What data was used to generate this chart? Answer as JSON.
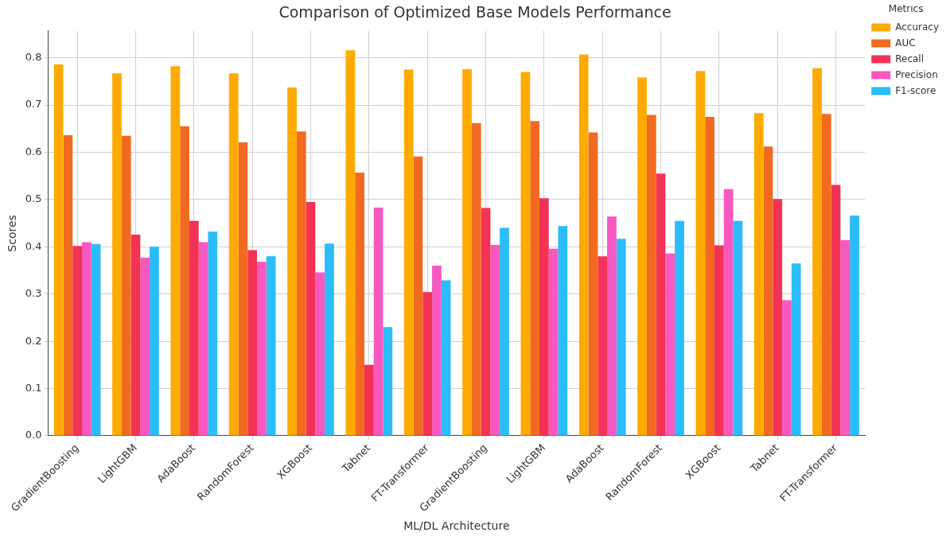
{
  "chart_data": {
    "type": "bar",
    "title": "Comparison of Optimized Base Models Performance",
    "xlabel": "ML/DL Architecture",
    "ylabel": "Scores",
    "legend_title": "Metrics",
    "legend": "top right",
    "grid": true,
    "categories": [
      "GradientBoosting",
      "LightGBM",
      "AdaBoost",
      "RandomForest",
      "XGBoost",
      "Tabnet",
      "FT-Transformer",
      "GradientBoosting",
      "LightGBM",
      "AdaBoost",
      "RandomForest",
      "XGBoost",
      "Tabnet",
      "FT-Transformer"
    ],
    "ylim": [
      0,
      0.857
    ],
    "yticks": [
      {
        "value": 0,
        "label": "0.0"
      },
      {
        "value": 0.1,
        "label": "0.1"
      },
      {
        "value": 0.2,
        "label": "0.2"
      },
      {
        "value": 0.3,
        "label": "0.3"
      },
      {
        "value": 0.4,
        "label": "0.4"
      },
      {
        "value": 0.5,
        "label": "0.5"
      },
      {
        "value": 0.6,
        "label": "0.6"
      },
      {
        "value": 0.7,
        "label": "0.7"
      },
      {
        "value": 0.8,
        "label": "0.8"
      }
    ],
    "series": [
      {
        "name": "Accuracy",
        "color": "#ffaa00",
        "values": [
          0.786,
          0.767,
          0.782,
          0.767,
          0.737,
          0.816,
          0.775,
          0.776,
          0.77,
          0.807,
          0.758,
          0.772,
          0.683,
          0.778
        ]
      },
      {
        "name": "AUC",
        "color": "#f26a21",
        "values": [
          0.636,
          0.635,
          0.655,
          0.621,
          0.644,
          0.557,
          0.591,
          0.662,
          0.666,
          0.642,
          0.679,
          0.675,
          0.612,
          0.681
        ]
      },
      {
        "name": "Recall",
        "color": "#f23355",
        "values": [
          0.402,
          0.426,
          0.455,
          0.393,
          0.495,
          0.15,
          0.304,
          0.482,
          0.503,
          0.38,
          0.555,
          0.403,
          0.501,
          0.531
        ]
      },
      {
        "name": "Precision",
        "color": "#f859c0",
        "values": [
          0.41,
          0.377,
          0.41,
          0.368,
          0.346,
          0.483,
          0.36,
          0.404,
          0.396,
          0.464,
          0.386,
          0.522,
          0.287,
          0.414
        ]
      },
      {
        "name": "F1-score",
        "color": "#2bbcfa",
        "values": [
          0.406,
          0.4,
          0.432,
          0.38,
          0.407,
          0.23,
          0.329,
          0.44,
          0.444,
          0.417,
          0.455,
          0.455,
          0.365,
          0.466
        ]
      }
    ]
  }
}
